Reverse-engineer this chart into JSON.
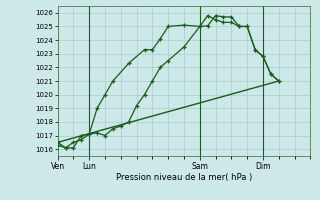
{
  "bg_color": "#cce8e8",
  "grid_color": "#aacccc",
  "line_color": "#1a5c1a",
  "marker": "+",
  "xlabel": "Pression niveau de la mer( hPa )",
  "ylim": [
    1015.5,
    1026.5
  ],
  "yticks": [
    1016,
    1017,
    1018,
    1019,
    1020,
    1021,
    1022,
    1023,
    1024,
    1025,
    1026
  ],
  "xtick_labels": [
    "Ven",
    "Lun",
    "Sam",
    "Dim"
  ],
  "xtick_positions": [
    0,
    2,
    9,
    13
  ],
  "xlim": [
    0,
    16
  ],
  "line1_x": [
    0,
    0.5,
    1.0,
    1.5,
    2.0,
    2.5,
    3.0,
    3.5,
    4.5,
    5.5,
    6.0,
    6.5,
    7.0,
    8.0,
    9.0,
    9.5,
    10.0,
    10.5,
    11.0,
    11.5,
    12.0,
    12.5,
    13.0,
    13.5,
    14.0
  ],
  "line1_y": [
    1016.3,
    1016.1,
    1016.1,
    1017.0,
    1017.1,
    1019.0,
    1020.0,
    1021.0,
    1022.3,
    1023.3,
    1023.3,
    1024.1,
    1025.0,
    1025.1,
    1025.0,
    1025.8,
    1025.5,
    1025.3,
    1025.3,
    1025.0,
    1025.0,
    1023.3,
    1022.8,
    1021.5,
    1021.0
  ],
  "line2_x": [
    0,
    0.5,
    1.0,
    1.5,
    2.0,
    2.5,
    3.0,
    3.5,
    4.0,
    4.5,
    5.0,
    5.5,
    6.0,
    6.5,
    7.0,
    8.0,
    9.0,
    9.5,
    10.0,
    10.5,
    11.0,
    11.5,
    12.0,
    12.5,
    13.0,
    13.5,
    14.0
  ],
  "line2_y": [
    1016.5,
    1016.1,
    1016.5,
    1016.7,
    1017.1,
    1017.2,
    1017.0,
    1017.5,
    1017.7,
    1018.0,
    1019.2,
    1020.0,
    1021.0,
    1022.0,
    1022.5,
    1023.5,
    1025.0,
    1025.05,
    1025.8,
    1025.7,
    1025.7,
    1025.0,
    1025.0,
    1023.3,
    1022.8,
    1021.5,
    1021.0
  ],
  "line3_x": [
    0,
    14.0
  ],
  "line3_y": [
    1016.5,
    1021.0
  ],
  "vline_positions": [
    2,
    9,
    13
  ]
}
